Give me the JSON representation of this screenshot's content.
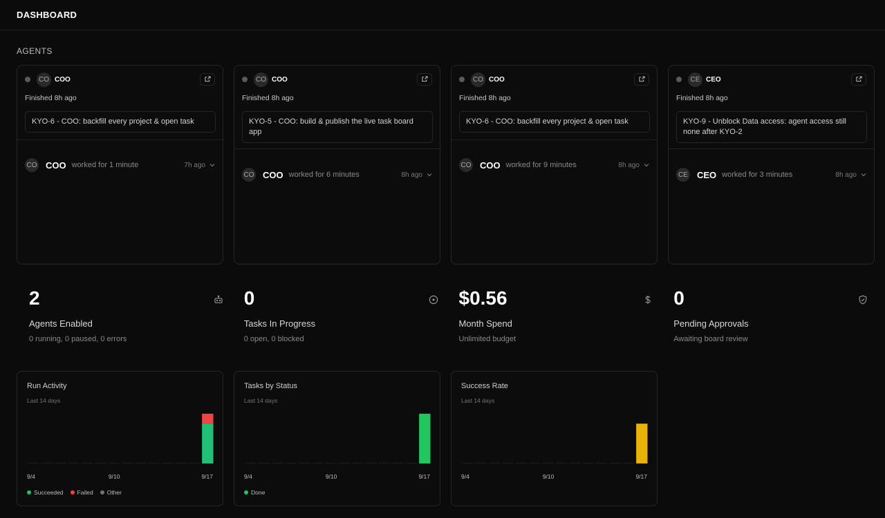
{
  "header": {
    "title": "DASHBOARD"
  },
  "agents_section": {
    "title": "AGENTS"
  },
  "agents": [
    {
      "initials": "CO",
      "name": "COO",
      "finished": "Finished 8h ago",
      "task": "KYO-6 - COO: backfill every project & open task",
      "run": {
        "initials": "CO",
        "name": "COO",
        "desc": "worked for 1 minute",
        "time": "7h ago"
      }
    },
    {
      "initials": "CO",
      "name": "COO",
      "finished": "Finished 8h ago",
      "task": "KYO-5 - COO: build & publish the live task board app",
      "run": {
        "initials": "CO",
        "name": "COO",
        "desc": "worked for 6 minutes",
        "time": "8h ago"
      }
    },
    {
      "initials": "CO",
      "name": "COO",
      "finished": "Finished 8h ago",
      "task": "KYO-6 - COO: backfill every project & open task",
      "run": {
        "initials": "CO",
        "name": "COO",
        "desc": "worked for 9 minutes",
        "time": "8h ago"
      }
    },
    {
      "initials": "CE",
      "name": "CEO",
      "finished": "Finished 8h ago",
      "task": "KYO-9 - Unblock Data access: agent access still none after KYO-2",
      "run": {
        "initials": "CE",
        "name": "CEO",
        "desc": "worked for 3 minutes",
        "time": "8h ago"
      }
    }
  ],
  "stats": [
    {
      "value": "2",
      "label": "Agents Enabled",
      "sub": "0 running, 0 paused, 0 errors",
      "icon": "robot-icon"
    },
    {
      "value": "0",
      "label": "Tasks In Progress",
      "sub": "0 open, 0 blocked",
      "icon": "circle-dot-icon"
    },
    {
      "value": "$0.56",
      "label": "Month Spend",
      "sub": "Unlimited budget",
      "icon": "dollar-icon"
    },
    {
      "value": "0",
      "label": "Pending Approvals",
      "sub": "Awaiting board review",
      "icon": "shield-check-icon"
    }
  ],
  "colors": {
    "succeeded": "#1fbf75",
    "failed": "#ef4444",
    "other": "#737373",
    "done": "#22c55e",
    "rate": "#eab308"
  },
  "chart_data": [
    {
      "type": "bar",
      "title": "Run Activity",
      "subtitle": "Last 14 days",
      "categories": [
        "9/4",
        "9/5",
        "9/6",
        "9/7",
        "9/8",
        "9/9",
        "9/10",
        "9/11",
        "9/12",
        "9/13",
        "9/14",
        "9/15",
        "9/16",
        "9/17"
      ],
      "tick_labels": [
        "9/4",
        "9/10",
        "9/17"
      ],
      "stacked": true,
      "series": [
        {
          "name": "Succeeded",
          "values": [
            0,
            0,
            0,
            0,
            0,
            0,
            0,
            0,
            0,
            0,
            0,
            0,
            0,
            4
          ]
        },
        {
          "name": "Failed",
          "values": [
            0,
            0,
            0,
            0,
            0,
            0,
            0,
            0,
            0,
            0,
            0,
            0,
            0,
            1
          ]
        },
        {
          "name": "Other",
          "values": [
            0,
            0,
            0,
            0,
            0,
            0,
            0,
            0,
            0,
            0,
            0,
            0,
            0,
            0
          ]
        }
      ]
    },
    {
      "type": "bar",
      "title": "Tasks by Status",
      "subtitle": "Last 14 days",
      "categories": [
        "9/4",
        "9/5",
        "9/6",
        "9/7",
        "9/8",
        "9/9",
        "9/10",
        "9/11",
        "9/12",
        "9/13",
        "9/14",
        "9/15",
        "9/16",
        "9/17"
      ],
      "tick_labels": [
        "9/4",
        "9/10",
        "9/17"
      ],
      "stacked": true,
      "series": [
        {
          "name": "Done",
          "values": [
            0,
            0,
            0,
            0,
            0,
            0,
            0,
            0,
            0,
            0,
            0,
            0,
            0,
            5
          ]
        }
      ]
    },
    {
      "type": "bar",
      "title": "Success Rate",
      "subtitle": "Last 14 days",
      "categories": [
        "9/4",
        "9/5",
        "9/6",
        "9/7",
        "9/8",
        "9/9",
        "9/10",
        "9/11",
        "9/12",
        "9/13",
        "9/14",
        "9/15",
        "9/16",
        "9/17"
      ],
      "tick_labels": [
        "9/4",
        "9/10",
        "9/17"
      ],
      "ylim": [
        0,
        100
      ],
      "series": [
        {
          "values": [
            0,
            0,
            0,
            0,
            0,
            0,
            0,
            0,
            0,
            0,
            0,
            0,
            0,
            80
          ]
        }
      ]
    }
  ]
}
